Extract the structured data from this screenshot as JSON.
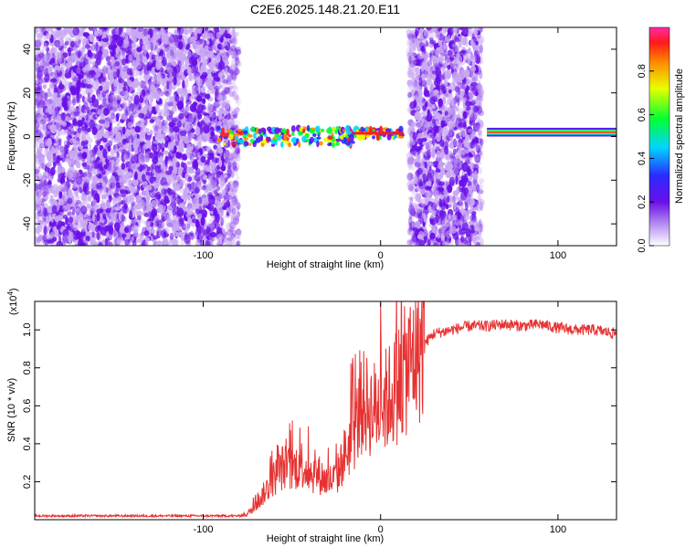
{
  "title": "C2E6.2025.148.21.20.E11",
  "colors": {
    "snr_line": "#e63232",
    "scatter_main": "#6a10e8",
    "scatter_light": "#c9a8f3",
    "background": "#ffffff",
    "axes": "#000000"
  },
  "chart_data": [
    {
      "type": "heatmap",
      "title": "C2E6.2025.148.21.20.E11",
      "xlabel": "Height of straight line (km)",
      "ylabel": "Frequency (Hz)",
      "xlim": [
        -195,
        133
      ],
      "ylim": [
        -50,
        50
      ],
      "x_ticks": [
        -100,
        0,
        100
      ],
      "x_tick_labels": [
        "-100",
        "0",
        "100"
      ],
      "y_ticks": [
        -40,
        -20,
        0,
        20,
        40
      ],
      "y_tick_labels": [
        "-40",
        "-20",
        "0",
        "20",
        "40"
      ],
      "grid": false,
      "noise_regions": [
        {
          "x_range": [
            -195,
            -80
          ],
          "description_value": "broadband"
        },
        {
          "x_range": [
            16,
            57
          ],
          "description_value": "broadband"
        }
      ],
      "coherent_band": {
        "segments": [
          {
            "x_range": [
              -92,
              -15
            ],
            "freq_center": 0,
            "freq_halfwidth": 4
          },
          {
            "x_range": [
              -15,
              13
            ],
            "freq_center": 1.5,
            "freq_halfwidth": 2
          },
          {
            "x_range": [
              60,
              133
            ],
            "freq_center": 2,
            "freq_halfwidth": 2
          }
        ]
      },
      "colorbar": {
        "label": "Normalized spectral amplitude",
        "range": [
          0,
          1
        ],
        "ticks": [
          0.0,
          0.2,
          0.4,
          0.6,
          0.8
        ],
        "tick_labels": [
          "0.0",
          "0.2",
          "0.4",
          "0.6",
          "0.8"
        ],
        "colormap": [
          "#ffffff",
          "#8a1ee8",
          "#2a2aff",
          "#00d5ff",
          "#00ff33",
          "#e8ff00",
          "#ff8a00",
          "#ff1a1a",
          "#ff2aa8"
        ]
      }
    },
    {
      "type": "line",
      "xlabel": "Height of straight line (km)",
      "ylabel": "SNR (10 * v/v)",
      "y_scale_label": "(x10",
      "y_scale_exponent": "4",
      "y_scale_close": ")",
      "xlim": [
        -195,
        133
      ],
      "ylim": [
        0,
        1.15
      ],
      "x_ticks": [
        -100,
        0,
        100
      ],
      "x_tick_labels": [
        "-100",
        "0",
        "100"
      ],
      "y_ticks": [
        0.2,
        0.4,
        0.6,
        0.8,
        1.0
      ],
      "y_tick_labels": [
        "0.2",
        "0.4",
        "0.6",
        "0.8",
        "1.0"
      ],
      "grid": false,
      "series": [
        {
          "color": "#e63232",
          "x": [
            -195,
            -150,
            -100,
            -80,
            -75,
            -70,
            -65,
            -60,
            -55,
            -50,
            -45,
            -40,
            -35,
            -30,
            -25,
            -20,
            -15,
            -10,
            -5,
            0,
            5,
            10,
            15,
            20,
            25,
            30,
            40,
            50,
            60,
            70,
            80,
            90,
            100,
            110,
            120,
            133
          ],
          "y": [
            0.02,
            0.02,
            0.02,
            0.02,
            0.03,
            0.08,
            0.15,
            0.22,
            0.28,
            0.26,
            0.3,
            0.25,
            0.24,
            0.2,
            0.22,
            0.35,
            0.45,
            0.62,
            0.58,
            0.6,
            0.65,
            0.72,
            0.8,
            0.88,
            0.93,
            0.98,
            1.0,
            1.02,
            1.02,
            1.03,
            1.02,
            1.03,
            1.01,
            1.0,
            1.0,
            0.98
          ]
        }
      ]
    }
  ]
}
